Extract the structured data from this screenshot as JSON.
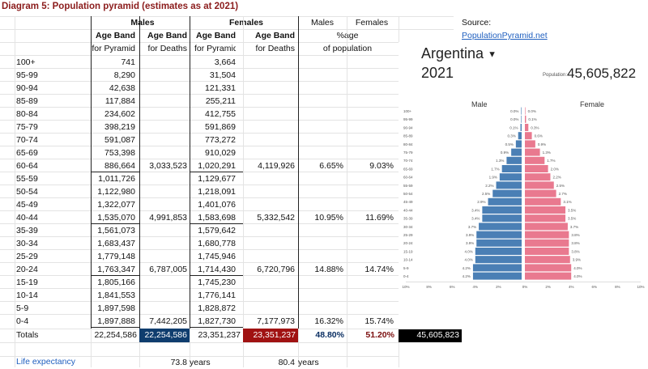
{
  "title": "Diagram 5: Population pyramid (estimates as at 2021)",
  "headers": {
    "males": "Males",
    "females": "Females",
    "males_pct": "Males",
    "females_pct": "Females",
    "source_label": "Source:",
    "age_band": "Age Band",
    "for_pyramid": "for Pyramid",
    "for_deaths": "for Deaths",
    "pct_age": "%age",
    "of_population": "of population",
    "source_link": "PopulationPyramid.net"
  },
  "rows": [
    {
      "age": "100+",
      "m": "741",
      "md": "",
      "f": "3,664",
      "fd": "",
      "mp": "",
      "fp": ""
    },
    {
      "age": "95-99",
      "m": "8,290",
      "md": "",
      "f": "31,504",
      "fd": "",
      "mp": "",
      "fp": ""
    },
    {
      "age": "90-94",
      "m": "42,638",
      "md": "",
      "f": "121,331",
      "fd": "",
      "mp": "",
      "fp": ""
    },
    {
      "age": "85-89",
      "m": "117,884",
      "md": "",
      "f": "255,211",
      "fd": "",
      "mp": "",
      "fp": ""
    },
    {
      "age": "80-84",
      "m": "234,602",
      "md": "",
      "f": "412,755",
      "fd": "",
      "mp": "",
      "fp": ""
    },
    {
      "age": "75-79",
      "m": "398,219",
      "md": "",
      "f": "591,869",
      "fd": "",
      "mp": "",
      "fp": ""
    },
    {
      "age": "70-74",
      "m": "591,087",
      "md": "",
      "f": "773,272",
      "fd": "",
      "mp": "",
      "fp": ""
    },
    {
      "age": "65-69",
      "m": "753,398",
      "md": "",
      "f": "910,029",
      "fd": "",
      "mp": "",
      "fp": ""
    },
    {
      "age": "60-64",
      "m": "886,664",
      "md": "3,033,523",
      "f": "1,020,291",
      "fd": "4,119,926",
      "mp": "6.65%",
      "fp": "9.03%"
    },
    {
      "age": "55-59",
      "m": "1,011,726",
      "md": "",
      "f": "1,129,677",
      "fd": "",
      "mp": "",
      "fp": ""
    },
    {
      "age": "50-54",
      "m": "1,122,980",
      "md": "",
      "f": "1,218,091",
      "fd": "",
      "mp": "",
      "fp": ""
    },
    {
      "age": "45-49",
      "m": "1,322,077",
      "md": "",
      "f": "1,401,076",
      "fd": "",
      "mp": "",
      "fp": ""
    },
    {
      "age": "40-44",
      "m": "1,535,070",
      "md": "4,991,853",
      "f": "1,583,698",
      "fd": "5,332,542",
      "mp": "10.95%",
      "fp": "11.69%"
    },
    {
      "age": "35-39",
      "m": "1,561,073",
      "md": "",
      "f": "1,579,642",
      "fd": "",
      "mp": "",
      "fp": ""
    },
    {
      "age": "30-34",
      "m": "1,683,437",
      "md": "",
      "f": "1,680,778",
      "fd": "",
      "mp": "",
      "fp": ""
    },
    {
      "age": "25-29",
      "m": "1,779,148",
      "md": "",
      "f": "1,745,946",
      "fd": "",
      "mp": "",
      "fp": ""
    },
    {
      "age": "20-24",
      "m": "1,763,347",
      "md": "6,787,005",
      "f": "1,714,430",
      "fd": "6,720,796",
      "mp": "14.88%",
      "fp": "14.74%"
    },
    {
      "age": "15-19",
      "m": "1,805,166",
      "md": "",
      "f": "1,745,230",
      "fd": "",
      "mp": "",
      "fp": ""
    },
    {
      "age": "10-14",
      "m": "1,841,553",
      "md": "",
      "f": "1,776,141",
      "fd": "",
      "mp": "",
      "fp": ""
    },
    {
      "age": "5-9",
      "m": "1,897,598",
      "md": "",
      "f": "1,828,872",
      "fd": "",
      "mp": "",
      "fp": ""
    },
    {
      "age": "0-4",
      "m": "1,897,888",
      "md": "7,442,205",
      "f": "1,827,730",
      "fd": "7,177,973",
      "mp": "16.32%",
      "fp": "15.74%"
    }
  ],
  "totals": {
    "label": "Totals",
    "m": "22,254,586",
    "md": "22,254,586",
    "f": "23,351,237",
    "fd": "23,351,237",
    "mp": "48.80%",
    "fp": "51.20%",
    "all": "45,605,823",
    "md_bg": "#0f3d6e",
    "fd_bg": "#a01212",
    "all_bg": "#000000",
    "mp_color": "#0b2f63",
    "fp_color": "#7a0c0c"
  },
  "life": {
    "label": "Life expectancy",
    "male": "73.8",
    "female": "80.4",
    "unit": "years"
  },
  "inset": {
    "country": "Argentina",
    "dropdown_icon": "triangle-down-icon",
    "year": "2021",
    "population_label": "Population:",
    "population": "45,605,822",
    "male_label": "Male",
    "female_label": "Female",
    "male_color": "#4a7fb5",
    "female_color": "#e9798f"
  },
  "chart_data": {
    "type": "bar",
    "orientation": "horizontal-diverging",
    "categories": [
      "100+",
      "95-99",
      "90-94",
      "85-89",
      "80-84",
      "75-79",
      "70-74",
      "65-69",
      "60-64",
      "55-59",
      "50-54",
      "45-49",
      "40-44",
      "35-39",
      "30-34",
      "25-29",
      "20-24",
      "15-19",
      "10-14",
      "5-9",
      "0-4"
    ],
    "series": [
      {
        "name": "Male",
        "labels": [
          "0.0%",
          "0.0%",
          "0.1%",
          "0.3%",
          "0.5%",
          "0.9%",
          "1.3%",
          "1.7%",
          "1.9%",
          "2.2%",
          "2.5%",
          "2.9%",
          "3.4%",
          "3.4%",
          "3.7%",
          "3.9%",
          "3.9%",
          "4.0%",
          "4.0%",
          "4.2%",
          "4.2%"
        ],
        "values": [
          0.0,
          0.0,
          0.1,
          0.3,
          0.5,
          0.9,
          1.3,
          1.7,
          1.9,
          2.2,
          2.5,
          2.9,
          3.4,
          3.4,
          3.7,
          3.9,
          3.9,
          4.0,
          4.0,
          4.2,
          4.2
        ]
      },
      {
        "name": "Female",
        "labels": [
          "0.0%",
          "0.1%",
          "0.3%",
          "0.6%",
          "0.9%",
          "1.3%",
          "1.7%",
          "2.0%",
          "2.2%",
          "2.5%",
          "2.7%",
          "3.1%",
          "3.5%",
          "3.5%",
          "3.7%",
          "3.8%",
          "3.8%",
          "3.8%",
          "3.9%",
          "4.0%",
          "4.0%"
        ],
        "values": [
          0.0,
          0.1,
          0.3,
          0.6,
          0.9,
          1.3,
          1.7,
          2.0,
          2.2,
          2.5,
          2.7,
          3.1,
          3.5,
          3.5,
          3.7,
          3.8,
          3.8,
          3.8,
          3.9,
          4.0,
          4.0
        ]
      }
    ],
    "xticks": [
      "10%",
      "8%",
      "6%",
      "4%",
      "2%",
      "0%",
      "2%",
      "4%",
      "6%",
      "8%",
      "10%"
    ],
    "xlim": [
      -10,
      10
    ],
    "legend": "top"
  }
}
